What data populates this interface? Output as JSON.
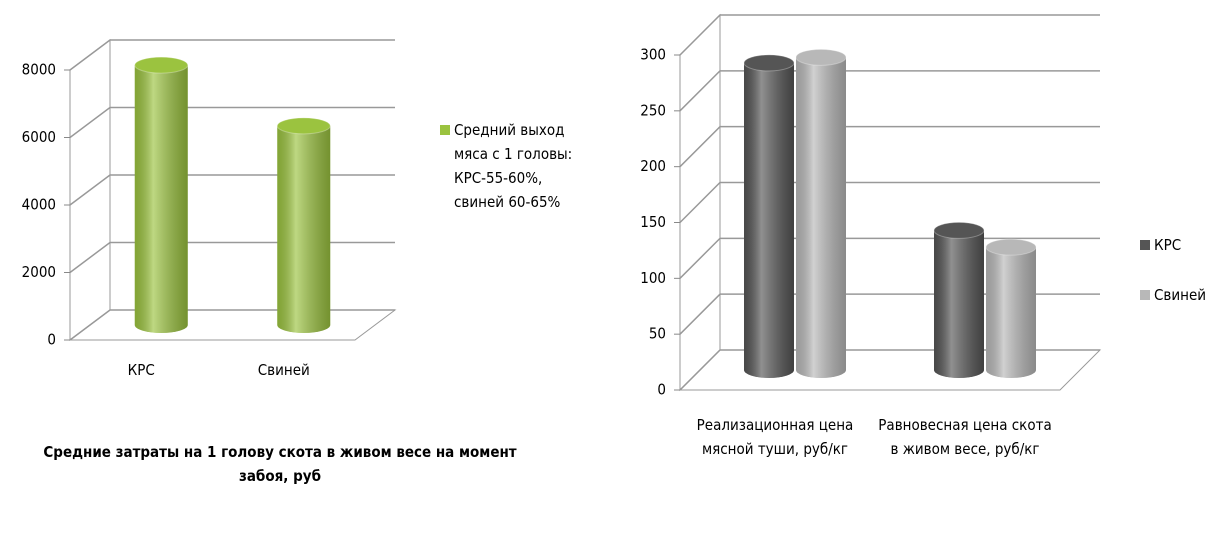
{
  "chart_data": [
    {
      "type": "bar3d",
      "title": "Средние затраты на 1 голову скота в живом весе на момент забоя, руб",
      "categories": [
        "КРС",
        "Свиней"
      ],
      "series": [
        {
          "name": "Средний выход мяса с 1 головы: КРС-55-60%, свиней 60-65%",
          "color": "#9bc33f",
          "values": [
            7700,
            5900
          ]
        }
      ],
      "ylim": [
        0,
        8000
      ],
      "yticks": [
        0,
        2000,
        4000,
        6000,
        8000
      ],
      "grid": true,
      "legend": "right"
    },
    {
      "type": "bar3d",
      "categories": [
        "Реализационная цена мясной туши, руб/кг",
        "Равновесная цена скота в живом весе, руб/кг"
      ],
      "series": [
        {
          "name": "КРС",
          "color": "#555555",
          "values": [
            275,
            125
          ]
        },
        {
          "name": "Свиней",
          "color": "#b8b8b8",
          "values": [
            280,
            110
          ]
        }
      ],
      "ylim": [
        0,
        300
      ],
      "yticks": [
        0,
        50,
        100,
        150,
        200,
        250,
        300
      ],
      "grid": true,
      "legend": "right"
    }
  ]
}
